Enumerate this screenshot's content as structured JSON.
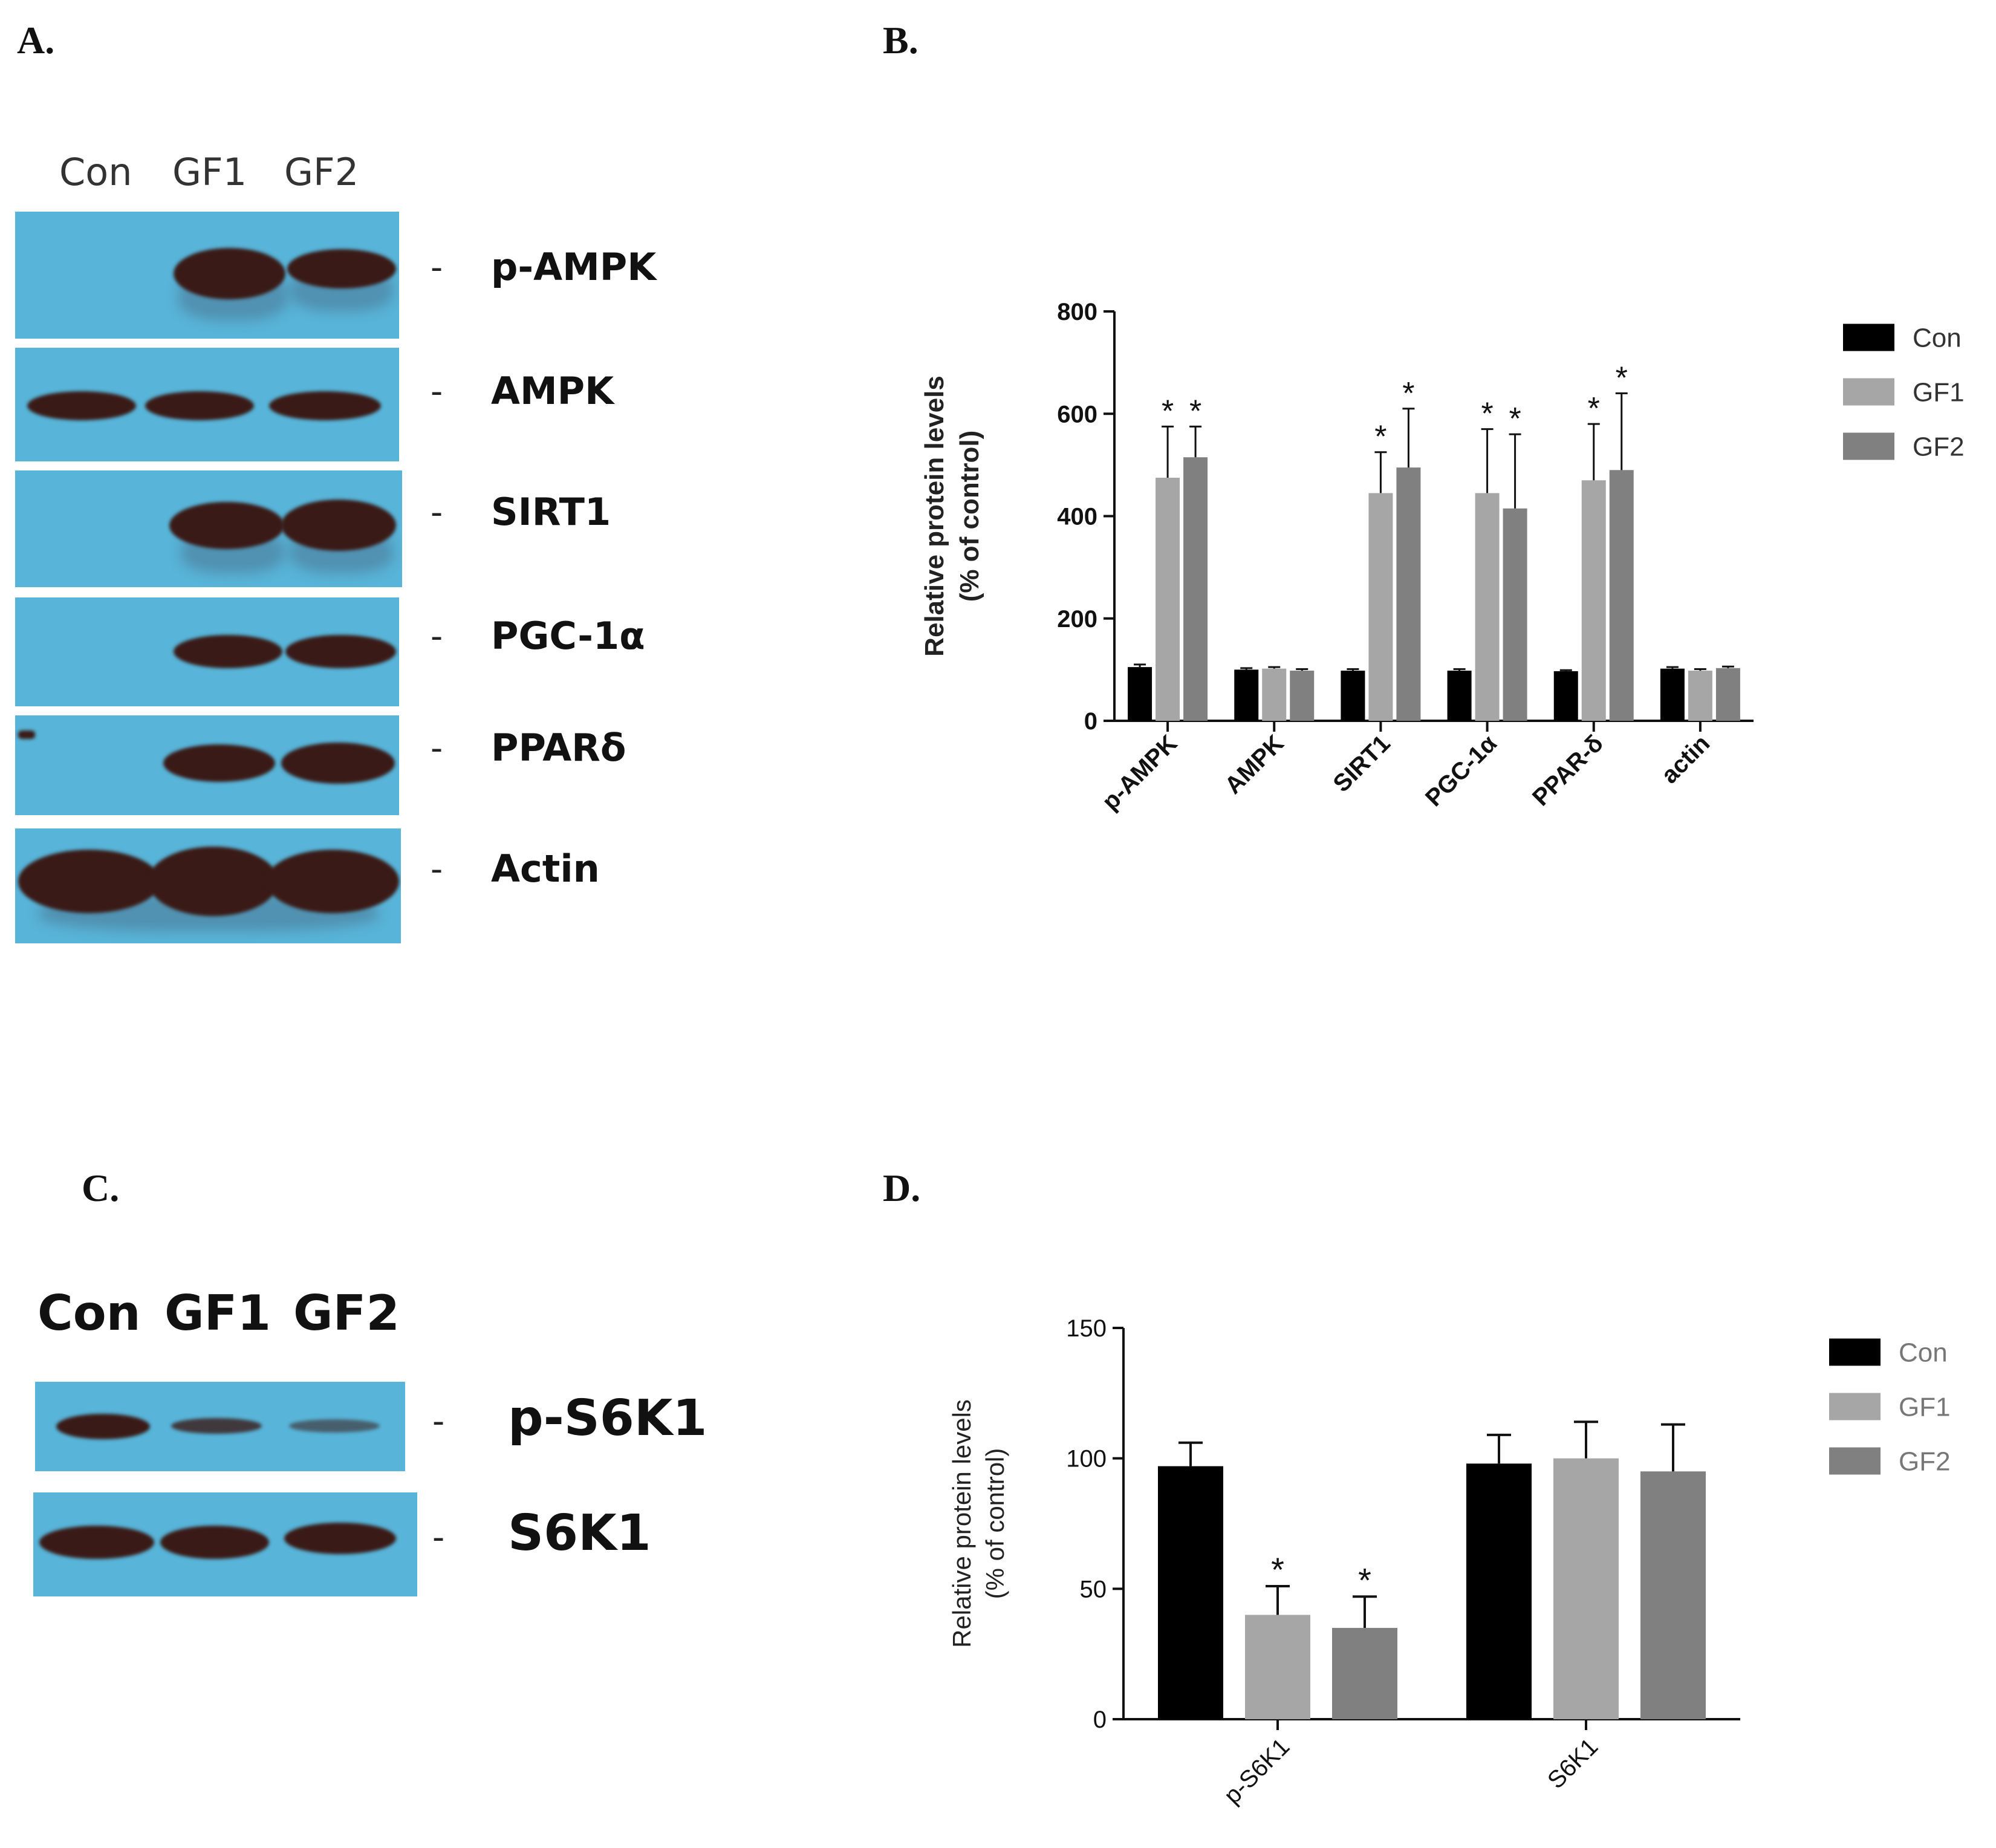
{
  "panels": {
    "a": "A.",
    "b": "B.",
    "c": "C.",
    "d": "D."
  },
  "blot_a": {
    "lanes": [
      "Con",
      "GF1",
      "GF2"
    ],
    "proteins": [
      "p-AMPK",
      "AMPK",
      "SIRT1",
      "PGC-1α",
      "PPARδ",
      "Actin"
    ]
  },
  "blot_c": {
    "lanes": [
      "Con",
      "GF1",
      "GF2"
    ],
    "proteins": [
      "p-S6K1",
      "S6K1"
    ]
  },
  "colors": {
    "blot_background": "#58b4d8",
    "band": "#3a1a16",
    "con": "#000000",
    "gf1": "#a6a6a6",
    "gf2": "#808080"
  },
  "chart_data": [
    {
      "type": "bar",
      "panel": "B.",
      "categories": [
        "p-AMPK",
        "AMPK",
        "SIRT1",
        "PGC-1α",
        "PPAR-δ",
        "actin"
      ],
      "series": [
        {
          "name": "Con",
          "values": [
            105,
            100,
            98,
            98,
            97,
            102
          ],
          "errors": [
            5,
            3,
            3,
            3,
            2,
            3
          ],
          "significant": [
            false,
            false,
            false,
            false,
            false,
            false
          ]
        },
        {
          "name": "GF1",
          "values": [
            475,
            102,
            445,
            445,
            470,
            98
          ],
          "errors": [
            100,
            3,
            80,
            125,
            110,
            3
          ],
          "significant": [
            true,
            false,
            true,
            true,
            true,
            false
          ]
        },
        {
          "name": "GF2",
          "values": [
            515,
            98,
            495,
            415,
            490,
            103
          ],
          "errors": [
            60,
            3,
            115,
            145,
            150,
            3
          ],
          "significant": [
            true,
            false,
            true,
            true,
            true,
            false
          ]
        }
      ],
      "ylabel": [
        "Relative protein levels",
        "(% of control)"
      ],
      "ylim": [
        0,
        800
      ],
      "yticks": [
        0,
        200,
        400,
        600,
        800
      ],
      "significance_marker": "*",
      "legend_position": "right"
    },
    {
      "type": "bar",
      "panel": "D.",
      "categories": [
        "p-S6K1",
        "S6K1"
      ],
      "series": [
        {
          "name": "Con",
          "values": [
            97,
            98
          ],
          "errors": [
            9,
            11
          ],
          "significant": [
            false,
            false
          ]
        },
        {
          "name": "GF1",
          "values": [
            40,
            100
          ],
          "errors": [
            11,
            14
          ],
          "significant": [
            true,
            false
          ]
        },
        {
          "name": "GF2",
          "values": [
            35,
            95
          ],
          "errors": [
            12,
            18
          ],
          "significant": [
            true,
            false
          ]
        }
      ],
      "ylabel": [
        "Relative protein levels",
        "(% of control)"
      ],
      "ylim": [
        0,
        150
      ],
      "yticks": [
        0,
        50,
        100,
        150
      ],
      "significance_marker": "*",
      "legend_position": "right"
    }
  ]
}
